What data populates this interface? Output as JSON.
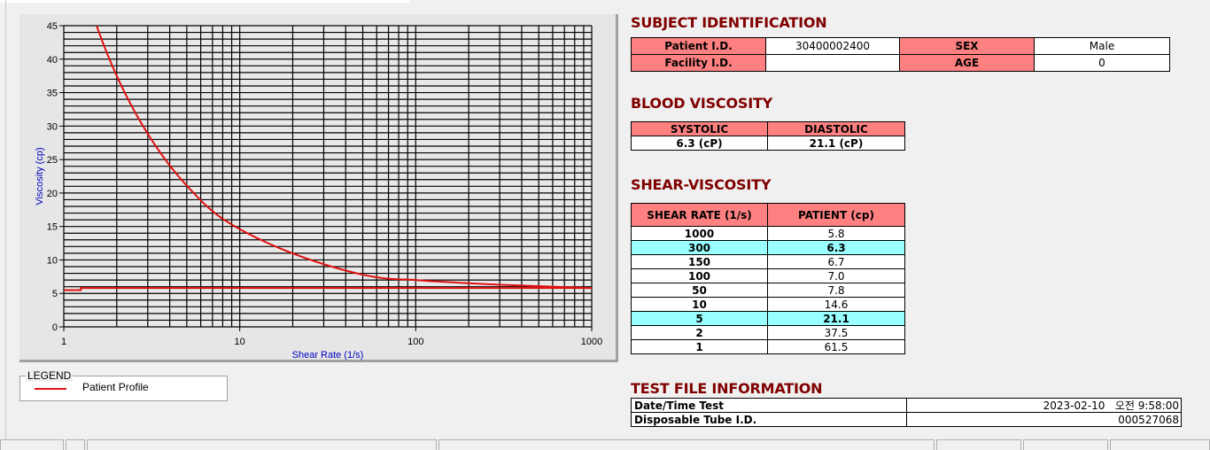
{
  "chart_data": {
    "type": "line",
    "xlabel": "Shear Rate (1/s)",
    "ylabel": "Viscosity (cp)",
    "xscale": "log",
    "xlim": [
      1,
      1000
    ],
    "ylim": [
      0,
      45
    ],
    "xticks": [
      "1",
      "10",
      "100",
      "1000"
    ],
    "yticks": [
      "0",
      "5",
      "10",
      "15",
      "20",
      "25",
      "30",
      "35",
      "40",
      "45"
    ],
    "grid": true,
    "series": [
      {
        "name": "Patient Profile",
        "color": "#e01010",
        "x": [
          1,
          2,
          5,
          10,
          50,
          100,
          150,
          300,
          1000
        ],
        "y": [
          61.5,
          37.5,
          21.1,
          14.6,
          7.8,
          7.0,
          6.7,
          6.3,
          5.8
        ]
      },
      {
        "color": "#e01010",
        "x": [
          1,
          1.25,
          1.25,
          1000
        ],
        "y": [
          5.5,
          5.5,
          5.8,
          5.8
        ]
      }
    ],
    "legend": {
      "title": "LEGEND",
      "placement": "bottom-left"
    }
  },
  "subject": {
    "title": "SUBJECT IDENTIFICATION",
    "patient_id_label": "Patient I.D.",
    "patient_id": "30400002400",
    "sex_label": "SEX",
    "sex": "Male",
    "facility_id_label": "Facility I.D.",
    "facility_id": "",
    "age_label": "AGE",
    "age": "0"
  },
  "blood": {
    "title": "BLOOD VISCOSITY",
    "systolic_label": "SYSTOLIC",
    "diastolic_label": "DIASTOLIC",
    "systolic": "6.3 (cP)",
    "diastolic": "21.1 (cP)"
  },
  "shear": {
    "title": "SHEAR-VISCOSITY",
    "col1": "SHEAR RATE (1/s)",
    "col2": "PATIENT (cp)",
    "rows": [
      {
        "rate": "1000",
        "val": "5.8"
      },
      {
        "rate": "300",
        "val": "6.3",
        "hl": true
      },
      {
        "rate": "150",
        "val": "6.7"
      },
      {
        "rate": "100",
        "val": "7.0"
      },
      {
        "rate": "50",
        "val": "7.8"
      },
      {
        "rate": "10",
        "val": "14.6"
      },
      {
        "rate": "5",
        "val": "21.1",
        "hl": true
      },
      {
        "rate": "2",
        "val": "37.5"
      },
      {
        "rate": "1",
        "val": "61.5"
      }
    ]
  },
  "testfile": {
    "title": "TEST FILE INFORMATION",
    "date_label": "Date/Time Test",
    "date": "2023-02-10   오전 9:58:00",
    "tube_label": "Disposable Tube I.D.",
    "tube": "000527068"
  },
  "colors": {
    "header": "#ff8080",
    "highlight": "#99ffff",
    "title": "#800000",
    "curve": "#e01010"
  }
}
